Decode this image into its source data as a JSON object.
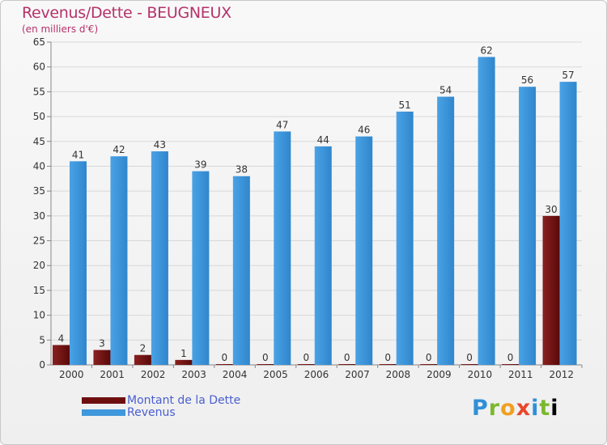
{
  "chart_data": {
    "type": "bar",
    "title": "Revenus/Dette - BEUGNEUX",
    "subtitle": "(en milliers d'€)",
    "categories": [
      "2000",
      "2001",
      "2002",
      "2003",
      "2004",
      "2005",
      "2006",
      "2007",
      "2008",
      "2009",
      "2010",
      "2011",
      "2012"
    ],
    "series": [
      {
        "name": "Montant de la Dette",
        "color": "#6e0f0f",
        "values": [
          4,
          3,
          2,
          1,
          0,
          0,
          0,
          0,
          0,
          0,
          0,
          0,
          30
        ]
      },
      {
        "name": "Revenus",
        "color": "#3f97dc",
        "values": [
          41,
          42,
          43,
          39,
          38,
          47,
          44,
          46,
          51,
          54,
          62,
          56,
          57
        ]
      }
    ],
    "ylim": [
      0,
      65
    ],
    "yticks": [
      0,
      5,
      10,
      15,
      20,
      25,
      30,
      35,
      40,
      45,
      50,
      55,
      60,
      65
    ],
    "grid": true,
    "legend": "bottom-left"
  },
  "logo": {
    "text": [
      "P",
      "r",
      "o",
      "x",
      "i",
      "t",
      "i"
    ]
  }
}
